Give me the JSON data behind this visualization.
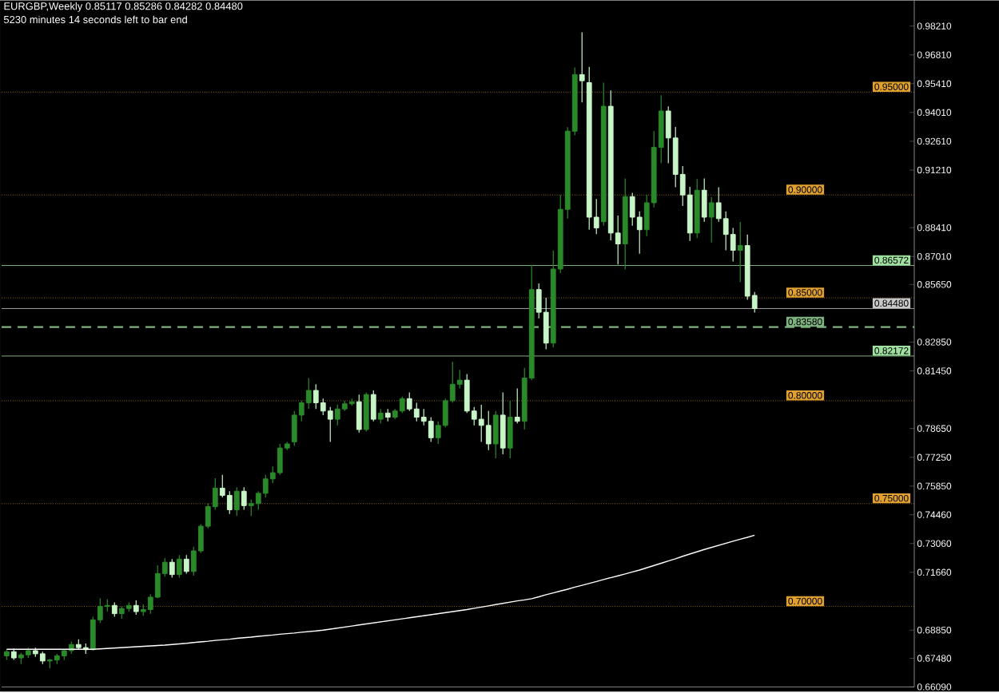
{
  "chart_data": {
    "type": "candlestick",
    "title": "EURGBP,Weekly  0.85117 0.85286 0.84282 0.84480",
    "subtitle": "5230 minutes 14 seconds left to bar end",
    "categories": [
      null,
      null,
      null,
      null,
      null,
      null,
      null,
      null,
      null,
      null,
      null,
      null,
      null,
      null,
      null,
      null,
      null,
      null,
      null,
      null,
      null,
      null,
      null,
      null,
      null,
      null,
      null,
      null,
      null,
      null,
      null,
      null,
      null,
      null,
      null,
      null,
      null,
      null,
      null,
      null,
      null,
      null,
      null,
      null,
      null,
      null,
      null,
      null,
      null,
      null,
      null,
      null,
      null,
      null,
      null,
      null,
      null,
      null,
      null,
      null,
      null,
      null,
      null,
      null,
      null,
      null,
      null,
      null,
      null,
      null,
      null,
      null,
      null,
      null,
      null,
      null,
      null,
      null,
      null,
      null,
      null,
      null,
      null,
      null,
      null,
      null,
      null,
      null,
      null,
      null,
      null,
      null,
      null,
      null,
      null,
      null,
      null,
      null,
      null,
      null,
      null,
      null,
      null,
      null,
      null
    ],
    "ohlc": [
      [
        0.676,
        0.679,
        0.674,
        0.678
      ],
      [
        0.678,
        0.6795,
        0.674,
        0.675
      ],
      [
        0.675,
        0.6775,
        0.672,
        0.6765
      ],
      [
        0.6765,
        0.68,
        0.675,
        0.6785
      ],
      [
        0.6785,
        0.68,
        0.6755,
        0.677
      ],
      [
        0.677,
        0.678,
        0.672,
        0.6735
      ],
      [
        0.6735,
        0.6745,
        0.67,
        0.674
      ],
      [
        0.674,
        0.677,
        0.672,
        0.676
      ],
      [
        0.676,
        0.679,
        0.674,
        0.6785
      ],
      [
        0.6785,
        0.683,
        0.677,
        0.6815
      ],
      [
        0.6815,
        0.684,
        0.679,
        0.68
      ],
      [
        0.68,
        0.682,
        0.677,
        0.679
      ],
      [
        0.679,
        0.695,
        0.6785,
        0.6935
      ],
      [
        0.6935,
        0.704,
        0.692,
        0.7
      ],
      [
        0.7,
        0.7035,
        0.6975,
        0.7005
      ],
      [
        0.7005,
        0.702,
        0.695,
        0.6965
      ],
      [
        0.6965,
        0.7,
        0.694,
        0.699
      ],
      [
        0.699,
        0.702,
        0.6975,
        0.7005
      ],
      [
        0.7005,
        0.703,
        0.696,
        0.6975
      ],
      [
        0.6975,
        0.701,
        0.6955,
        0.6985
      ],
      [
        0.6985,
        0.706,
        0.6965,
        0.7045
      ],
      [
        0.7045,
        0.72,
        0.704,
        0.716
      ],
      [
        0.716,
        0.7235,
        0.7145,
        0.7215
      ],
      [
        0.7215,
        0.723,
        0.714,
        0.7155
      ],
      [
        0.7155,
        0.725,
        0.714,
        0.723
      ],
      [
        0.723,
        0.725,
        0.716,
        0.717
      ],
      [
        0.717,
        0.729,
        0.715,
        0.727
      ],
      [
        0.727,
        0.74,
        0.726,
        0.739
      ],
      [
        0.739,
        0.75,
        0.738,
        0.7485
      ],
      [
        0.7485,
        0.7623,
        0.747,
        0.7575
      ],
      [
        0.7575,
        0.764,
        0.753,
        0.754
      ],
      [
        0.754,
        0.756,
        0.745,
        0.747
      ],
      [
        0.747,
        0.758,
        0.744,
        0.756
      ],
      [
        0.756,
        0.758,
        0.747,
        0.749
      ],
      [
        0.749,
        0.752,
        0.744,
        0.75
      ],
      [
        0.75,
        0.756,
        0.747,
        0.755
      ],
      [
        0.755,
        0.764,
        0.753,
        0.762
      ],
      [
        0.762,
        0.768,
        0.76,
        0.765
      ],
      [
        0.765,
        0.779,
        0.764,
        0.777
      ],
      [
        0.777,
        0.78,
        0.776,
        0.779
      ],
      [
        0.78,
        0.795,
        0.778,
        0.793
      ],
      [
        0.793,
        0.8,
        0.79,
        0.799
      ],
      [
        0.799,
        0.811,
        0.796,
        0.805
      ],
      [
        0.805,
        0.808,
        0.796,
        0.799
      ],
      [
        0.799,
        0.801,
        0.793,
        0.795
      ],
      [
        0.795,
        0.797,
        0.78,
        0.791
      ],
      [
        0.791,
        0.798,
        0.788,
        0.796
      ],
      [
        0.796,
        0.8,
        0.795,
        0.7985
      ],
      [
        0.7985,
        0.801,
        0.7975,
        0.7995
      ],
      [
        0.7995,
        0.803,
        0.7845,
        0.786
      ],
      [
        0.786,
        0.804,
        0.785,
        0.803
      ],
      [
        0.803,
        0.805,
        0.79,
        0.791
      ],
      [
        0.791,
        0.796,
        0.789,
        0.794
      ],
      [
        0.794,
        0.796,
        0.79,
        0.792
      ],
      [
        0.792,
        0.796,
        0.791,
        0.795
      ],
      [
        0.795,
        0.802,
        0.794,
        0.801
      ],
      [
        0.801,
        0.804,
        0.795,
        0.796
      ],
      [
        0.796,
        0.799,
        0.79,
        0.792
      ],
      [
        0.792,
        0.796,
        0.788,
        0.79
      ],
      [
        0.79,
        0.792,
        0.78,
        0.782
      ],
      [
        0.782,
        0.79,
        0.779,
        0.788
      ],
      [
        0.788,
        0.801,
        0.787,
        0.8
      ],
      [
        0.8,
        0.819,
        0.799,
        0.808
      ],
      [
        0.808,
        0.815,
        0.806,
        0.81
      ],
      [
        0.81,
        0.813,
        0.794,
        0.795
      ],
      [
        0.795,
        0.797,
        0.788,
        0.791
      ],
      [
        0.791,
        0.798,
        0.78,
        0.788
      ],
      [
        0.788,
        0.795,
        0.776,
        0.779
      ],
      [
        0.779,
        0.795,
        0.772,
        0.793
      ],
      [
        0.793,
        0.804,
        0.774,
        0.777
      ],
      [
        0.777,
        0.8,
        0.772,
        0.792
      ],
      [
        0.792,
        0.806,
        0.789,
        0.79
      ],
      [
        0.79,
        0.816,
        0.786,
        0.811
      ],
      [
        0.811,
        0.866,
        0.81,
        0.854
      ],
      [
        0.854,
        0.857,
        0.84,
        0.843
      ],
      [
        0.843,
        0.85,
        0.825,
        0.828
      ],
      [
        0.828,
        0.873,
        0.826,
        0.864
      ],
      [
        0.864,
        0.9,
        0.862,
        0.893
      ],
      [
        0.893,
        0.933,
        0.8885,
        0.931
      ],
      [
        0.931,
        0.962,
        0.929,
        0.9585
      ],
      [
        0.9585,
        0.979,
        0.945,
        0.9555
      ],
      [
        0.9546,
        0.9623,
        0.8831,
        0.8892
      ],
      [
        0.8892,
        0.898,
        0.881,
        0.884
      ],
      [
        0.887,
        0.9546,
        0.885,
        0.9431
      ],
      [
        0.9431,
        0.9508,
        0.878,
        0.8815
      ],
      [
        0.8815,
        0.89,
        0.8662,
        0.8762
      ],
      [
        0.8762,
        0.908,
        0.8638,
        0.8992
      ],
      [
        0.8992,
        0.901,
        0.885,
        0.8892
      ],
      [
        0.8892,
        0.892,
        0.8715,
        0.8831
      ],
      [
        0.8831,
        0.9,
        0.88,
        0.8962
      ],
      [
        0.8962,
        0.931,
        0.894,
        0.9231
      ],
      [
        0.9231,
        0.9485,
        0.9154,
        0.9408
      ],
      [
        0.9408,
        0.943,
        0.9154,
        0.9277
      ],
      [
        0.9277,
        0.9331,
        0.9038,
        0.91
      ],
      [
        0.91,
        0.914,
        0.8946,
        0.9
      ],
      [
        0.9,
        0.904,
        0.8777,
        0.8815
      ],
      [
        0.8815,
        0.9077,
        0.879,
        0.9023
      ],
      [
        0.9023,
        0.908,
        0.887,
        0.8892
      ],
      [
        0.8892,
        0.899,
        0.8769,
        0.8962
      ],
      [
        0.8962,
        0.9038,
        0.887,
        0.8885
      ],
      [
        0.8885,
        0.892,
        0.8731,
        0.8808
      ],
      [
        0.8808,
        0.884,
        0.8677,
        0.8731
      ],
      [
        0.8731,
        0.8869,
        0.8577,
        0.8754
      ],
      [
        0.8754,
        0.8808,
        0.849,
        0.8508
      ],
      [
        0.85117,
        0.85286,
        0.84282,
        0.8448
      ]
    ],
    "colors": [
      "#2a8a2a",
      "#c8f5c8",
      "#2a8a2a",
      "#2a8a2a",
      "#c8f5c8",
      "#c8f5c8",
      "#2a8a2a",
      "#2a8a2a",
      "#2a8a2a",
      "#2a8a2a",
      "#c8f5c8",
      "#c8f5c8",
      "#2a8a2a",
      "#2a8a2a",
      "#2a8a2a",
      "#c8f5c8",
      "#2a8a2a",
      "#2a8a2a",
      "#c8f5c8",
      "#2a8a2a",
      "#2a8a2a",
      "#2a8a2a",
      "#2a8a2a",
      "#c8f5c8",
      "#2a8a2a",
      "#c8f5c8",
      "#2a8a2a",
      "#2a8a2a",
      "#2a8a2a",
      "#2a8a2a",
      "#c8f5c8",
      "#c8f5c8",
      "#2a8a2a",
      "#c8f5c8",
      "#2a8a2a",
      "#2a8a2a",
      "#2a8a2a",
      "#2a8a2a",
      "#2a8a2a",
      "#2a8a2a",
      "#2a8a2a",
      "#2a8a2a",
      "#2a8a2a",
      "#c8f5c8",
      "#c8f5c8",
      "#c8f5c8",
      "#2a8a2a",
      "#2a8a2a",
      "#2a8a2a",
      "#c8f5c8",
      "#2a8a2a",
      "#c8f5c8",
      "#2a8a2a",
      "#c8f5c8",
      "#2a8a2a",
      "#2a8a2a",
      "#c8f5c8",
      "#c8f5c8",
      "#c8f5c8",
      "#c8f5c8",
      "#2a8a2a",
      "#2a8a2a",
      "#2a8a2a",
      "#2a8a2a",
      "#c8f5c8",
      "#c8f5c8",
      "#c8f5c8",
      "#c8f5c8",
      "#2a8a2a",
      "#c8f5c8",
      "#2a8a2a",
      "#c8f5c8",
      "#2a8a2a",
      "#2a8a2a",
      "#c8f5c8",
      "#c8f5c8",
      "#2a8a2a",
      "#2a8a2a",
      "#2a8a2a",
      "#2a8a2a",
      "#c8f5c8",
      "#c8f5c8",
      "#c8f5c8",
      "#2a8a2a",
      "#c8f5c8",
      "#c8f5c8",
      "#2a8a2a",
      "#c8f5c8",
      "#c8f5c8",
      "#2a8a2a",
      "#2a8a2a",
      "#2a8a2a",
      "#c8f5c8",
      "#c8f5c8",
      "#c8f5c8",
      "#c8f5c8",
      "#2a8a2a",
      "#c8f5c8",
      "#2a8a2a",
      "#c8f5c8",
      "#c8f5c8",
      "#c8f5c8",
      "#2a8a2a",
      "#c8f5c8",
      "#c8f5c8"
    ],
    "series": [
      {
        "type": "line",
        "color": "#ffffff",
        "values": [
          0.6792,
          0.6792,
          0.6792,
          0.6792,
          0.6792,
          0.6792,
          0.6792,
          0.6792,
          0.6792,
          0.6792,
          0.6792,
          0.6792,
          0.6792,
          0.6794,
          0.6796,
          0.6798,
          0.68,
          0.6802,
          0.6804,
          0.6806,
          0.6808,
          0.681,
          0.6812,
          0.6815,
          0.6818,
          0.6821,
          0.6825,
          0.6828,
          0.6831,
          0.6835,
          0.6838,
          0.6841,
          0.6845,
          0.6848,
          0.6851,
          0.6855,
          0.6858,
          0.6861,
          0.6865,
          0.6868,
          0.6871,
          0.6875,
          0.6878,
          0.6881,
          0.6885,
          0.689,
          0.6895,
          0.69,
          0.6905,
          0.691,
          0.6915,
          0.692,
          0.6925,
          0.693,
          0.6935,
          0.694,
          0.6945,
          0.695,
          0.6955,
          0.696,
          0.6965,
          0.697,
          0.6975,
          0.698,
          0.6985,
          0.6991,
          0.6997,
          0.7003,
          0.7009,
          0.7015,
          0.7021,
          0.7027,
          0.7032,
          0.7038,
          0.7047,
          0.7057,
          0.7066,
          0.7075,
          0.7084,
          0.7094,
          0.7103,
          0.7112,
          0.7121,
          0.7131,
          0.714,
          0.7149,
          0.7158,
          0.7168,
          0.7177,
          0.7188,
          0.7199,
          0.721,
          0.7221,
          0.7232,
          0.7244,
          0.7255,
          0.7266,
          0.7277,
          0.7287,
          0.7297,
          0.7307,
          0.7317,
          0.7327,
          0.7336,
          0.7346
        ]
      }
    ],
    "ylim": [
      0.6609,
      0.9946
    ],
    "yticks": [
      {
        "value": 0.9821,
        "label": "0.98210"
      },
      {
        "value": 0.9681,
        "label": "0.96810"
      },
      {
        "value": 0.9541,
        "label": "0.95410"
      },
      {
        "value": 0.9401,
        "label": "0.94010"
      },
      {
        "value": 0.9261,
        "label": "0.92610"
      },
      {
        "value": 0.9121,
        "label": "0.91210"
      },
      {
        "value": 0.8841,
        "label": "0.88410"
      },
      {
        "value": 0.8701,
        "label": "0.87010"
      },
      {
        "value": 0.8565,
        "label": "0.85650"
      },
      {
        "value": 0.8285,
        "label": "0.82850"
      },
      {
        "value": 0.8145,
        "label": "0.81450"
      },
      {
        "value": 0.7865,
        "label": "0.78650"
      },
      {
        "value": 0.7725,
        "label": "0.77250"
      },
      {
        "value": 0.7585,
        "label": "0.75850"
      },
      {
        "value": 0.7446,
        "label": "0.74460"
      },
      {
        "value": 0.7306,
        "label": "0.73060"
      },
      {
        "value": 0.7166,
        "label": "0.71660"
      },
      {
        "value": 0.6885,
        "label": "0.68850"
      },
      {
        "value": 0.6748,
        "label": "0.67480"
      },
      {
        "value": 0.6609,
        "label": "0.66090"
      }
    ],
    "ref_lines": [
      {
        "axis": "y",
        "value": 0.95,
        "label": "0.95000",
        "color": "#e0a030",
        "line_style": "dotted"
      },
      {
        "axis": "y",
        "value": 0.9,
        "label": "0.90000",
        "color": "#e0a030",
        "line_style": "dotted"
      },
      {
        "axis": "y",
        "value": 0.86572,
        "label": "0.86572",
        "color": "#9fe0a0",
        "line_style": "solid"
      },
      {
        "axis": "y",
        "value": 0.85,
        "label": "0.85000",
        "color": "#e0a030",
        "line_style": "dotted"
      },
      {
        "axis": "y",
        "value": 0.8448,
        "label": "0.84480",
        "color": "#c8c8c8",
        "line_style": "solid"
      },
      {
        "axis": "y",
        "value": 0.8358,
        "label": "0.83580",
        "color": "#7fb07f",
        "line_style": "dashed"
      },
      {
        "axis": "y",
        "value": 0.82172,
        "label": "0.82172",
        "color": "#9fe0a0",
        "line_style": "solid"
      },
      {
        "axis": "y",
        "value": 0.8,
        "label": "0.80000",
        "color": "#e0a030",
        "line_style": "dotted"
      },
      {
        "axis": "y",
        "value": 0.75,
        "label": "0.75000",
        "color": "#e0a030",
        "line_style": "dotted"
      },
      {
        "axis": "y",
        "value": 0.7,
        "label": "0.70000",
        "color": "#e0a030",
        "line_style": "dotted"
      }
    ]
  }
}
